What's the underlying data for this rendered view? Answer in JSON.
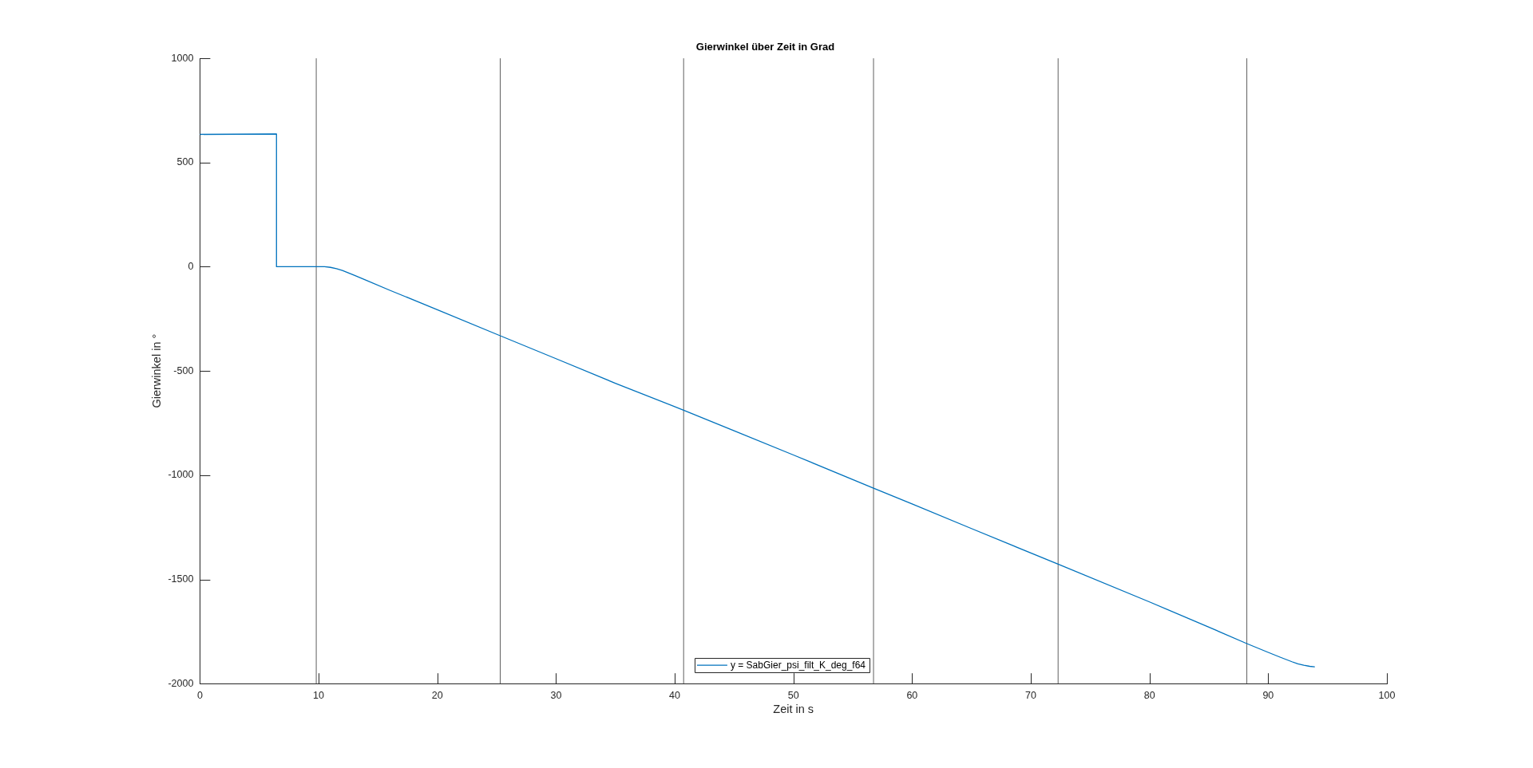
{
  "chart_data": {
    "type": "line",
    "title": "Gierwinkel über Zeit in Grad",
    "xlabel": "Zeit in s",
    "ylabel": "Gierwinkel in °",
    "x": [
      0,
      6.45,
      6.45,
      10.5,
      11,
      11.5,
      12,
      12.5,
      13,
      14,
      16,
      20,
      25.3,
      30,
      35,
      40.75,
      45,
      50,
      56.75,
      60,
      65,
      72.3,
      80,
      85,
      88.2,
      90,
      91,
      92,
      92.5,
      93,
      93.5,
      93.9
    ],
    "series": [
      {
        "name": "y = SabGier_psi_filt_K_deg_f64",
        "color": "#0072bd",
        "values": [
          635,
          637,
          0,
          0,
          -3,
          -9,
          -18,
          -29,
          -41,
          -65,
          -113,
          -206,
          -331,
          -441,
          -559,
          -688,
          -787,
          -903,
          -1062,
          -1138,
          -1256,
          -1427,
          -1608,
          -1729,
          -1808,
          -1850,
          -1873,
          -1895,
          -1905,
          -1912,
          -1917,
          -1919
        ]
      }
    ],
    "xlim": [
      0,
      100
    ],
    "xticks": [
      0,
      10,
      20,
      30,
      40,
      50,
      60,
      70,
      80,
      90,
      100
    ],
    "ylim": [
      -2000,
      1000
    ],
    "yticks": [
      -2000,
      -1500,
      -1000,
      -500,
      0,
      500,
      1000
    ],
    "ref_lines": [
      {
        "axis": "x",
        "value": 9.8,
        "color": "#606060"
      },
      {
        "axis": "x",
        "value": 25.3,
        "color": "#606060"
      },
      {
        "axis": "x",
        "value": 40.75,
        "color": "#606060"
      },
      {
        "axis": "x",
        "value": 56.75,
        "color": "#606060"
      },
      {
        "axis": "x",
        "value": 72.3,
        "color": "#606060"
      },
      {
        "axis": "x",
        "value": 88.2,
        "color": "#606060"
      }
    ],
    "legend": "bottom"
  }
}
